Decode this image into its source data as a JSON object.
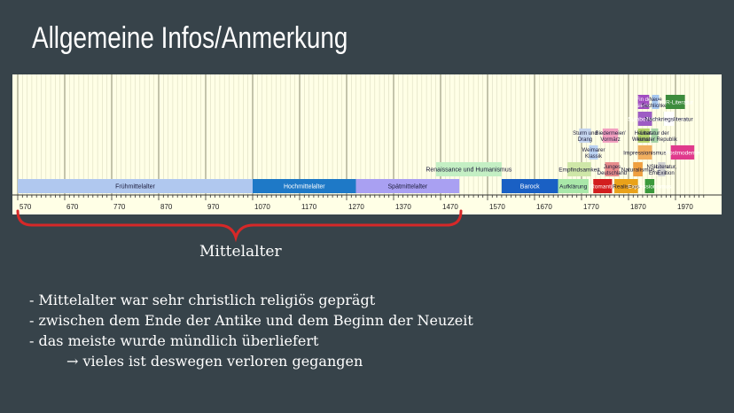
{
  "slide": {
    "title": "Allgemeine Infos/Anmerkung",
    "brace_label": "Mittelalter",
    "bullets": [
      "- Mittelalter war sehr christlich religiös geprägt",
      "- zwischen dem Ende der Antike und dem Beginn der Neuzeit",
      "- das meiste wurde mündlich überliefert"
    ],
    "sub_bullet": "→ vieles ist deswegen verloren gegangen"
  },
  "timeline": {
    "axis_min": 570,
    "axis_max": 2030,
    "tick_labels": [
      570,
      670,
      770,
      870,
      970,
      1070,
      1170,
      1270,
      1370,
      1470,
      1570,
      1670,
      1770,
      1870,
      1970
    ],
    "epochs": [
      {
        "label": "Frühmittelalter",
        "start": 570,
        "end": 1070,
        "row": 0,
        "color": "#b0c8ef"
      },
      {
        "label": "Hochmittelalter",
        "start": 1070,
        "end": 1290,
        "row": 0,
        "color": "#1e79c7"
      },
      {
        "label": "Spätmittelalter",
        "start": 1290,
        "end": 1510,
        "row": 0,
        "color": "#a9a0f2"
      },
      {
        "label": "Renaissance und Humanismus",
        "start": 1460,
        "end": 1600,
        "row": 1,
        "color": "#c4efc4"
      },
      {
        "label": "Barock",
        "start": 1600,
        "end": 1720,
        "row": 0,
        "color": "#1a60c4"
      },
      {
        "label": "Aufklärung",
        "start": 1720,
        "end": 1785,
        "row": 0,
        "color": "#a9e8a9"
      },
      {
        "label": "Romantik",
        "start": 1795,
        "end": 1835,
        "row": 0,
        "color": "#d21e1e"
      },
      {
        "label": "Realismus",
        "start": 1840,
        "end": 1890,
        "row": 0,
        "color": "#e9a21a"
      },
      {
        "label": "Expressionismus",
        "start": 1905,
        "end": 1925,
        "row": 0,
        "color": "#3c9a3c"
      },
      {
        "label": "Empfindsamkeit",
        "start": 1740,
        "end": 1790,
        "row": 1,
        "color": "#cfe7a8"
      },
      {
        "label": "Junges Deutschland",
        "start": 1820,
        "end": 1850,
        "row": 1,
        "color": "#e88c8c"
      },
      {
        "label": "Naturalismus",
        "start": 1880,
        "end": 1900,
        "row": 1,
        "color": "#f0a040"
      },
      {
        "label": "Innere Emigration",
        "start": 1933,
        "end": 1945,
        "row": 1,
        "color": "#9bc9ee"
      },
      {
        "label": "NS-Literatur, Exil",
        "start": 1933,
        "end": 1945,
        "row": 1,
        "color": "#d0d0d0"
      },
      {
        "label": "Weimarer Klassik",
        "start": 1786,
        "end": 1805,
        "row": 2,
        "color": "#bcd3f2"
      },
      {
        "label": "Impressionismus",
        "start": 1890,
        "end": 1920,
        "row": 2,
        "color": "#f2b060"
      },
      {
        "label": "Postmoderne",
        "start": 1960,
        "end": 2010,
        "row": 2,
        "color": "#e03a8c"
      },
      {
        "label": "Sturm und Drang",
        "start": 1765,
        "end": 1790,
        "row": 3,
        "color": "#c4d4ee"
      },
      {
        "label": "Biedermeier/ Vormärz",
        "start": 1815,
        "end": 1848,
        "row": 3,
        "color": "#f2a0c0"
      },
      {
        "label": "Heimat- kunst",
        "start": 1890,
        "end": 1915,
        "row": 3,
        "color": "#b4d46c"
      },
      {
        "label": "Literatur der Weimarer Republik",
        "start": 1918,
        "end": 1933,
        "row": 3,
        "color": "#a6d4a6"
      },
      {
        "label": "Symbolismus",
        "start": 1890,
        "end": 1920,
        "row": 4,
        "color": "#9d5cc4"
      },
      {
        "label": "Trümmerliteratur",
        "start": 1945,
        "end": 1950,
        "row": 4,
        "color": "#4a8a4a"
      },
      {
        "label": "Nachkriegsliteratur",
        "start": 1945,
        "end": 1967,
        "row": 4,
        "color": "#ffffff"
      },
      {
        "label": "Fin de siècle",
        "start": 1890,
        "end": 1914,
        "row": 5,
        "color": "#a04cc0"
      },
      {
        "label": "Neue Sachlichkeit",
        "start": 1920,
        "end": 1933,
        "row": 5,
        "color": "#a7c8f0"
      },
      {
        "label": "DDR-Literatur",
        "start": 1949,
        "end": 1990,
        "row": 5,
        "color": "#3d8c3d"
      }
    ]
  },
  "colors": {
    "background": "#37434a",
    "brace": "#d62828"
  }
}
